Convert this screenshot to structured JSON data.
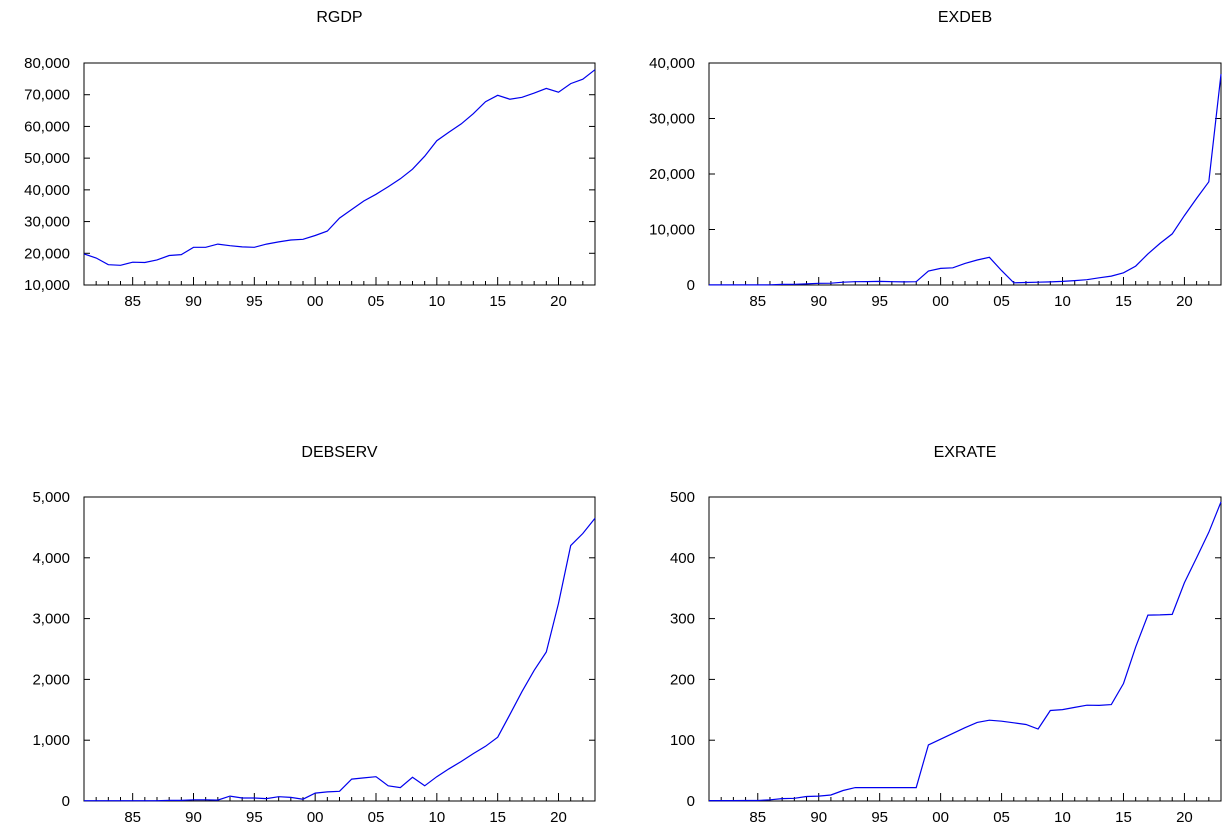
{
  "chart_data": [
    {
      "type": "line",
      "title": "RGDP",
      "x": [
        1981,
        1982,
        1983,
        1984,
        1985,
        1986,
        1987,
        1988,
        1989,
        1990,
        1991,
        1992,
        1993,
        1994,
        1995,
        1996,
        1997,
        1998,
        1999,
        2000,
        2001,
        2002,
        2003,
        2004,
        2005,
        2006,
        2007,
        2008,
        2009,
        2010,
        2011,
        2012,
        2013,
        2014,
        2015,
        2016,
        2017,
        2018,
        2019,
        2020,
        2021,
        2022,
        2023
      ],
      "series": [
        {
          "values": [
            19800,
            18500,
            16400,
            16200,
            17200,
            17100,
            17900,
            19300,
            19600,
            21900,
            21900,
            22900,
            22400,
            22000,
            21900,
            22900,
            23600,
            24200,
            24400,
            25600,
            27000,
            31100,
            33800,
            36500,
            38600,
            41000,
            43500,
            46500,
            50600,
            55500,
            58200,
            60800,
            64000,
            67800,
            69800,
            68600,
            69200,
            70500,
            72000,
            70800,
            73500,
            74900,
            77900
          ],
          "color": "#0000ee"
        }
      ],
      "xticks": [
        "85",
        "90",
        "95",
        "00",
        "05",
        "10",
        "15",
        "20"
      ],
      "yticks": [
        "10,000",
        "20,000",
        "30,000",
        "40,000",
        "50,000",
        "60,000",
        "70,000",
        "80,000"
      ],
      "ylim": [
        10000,
        80000
      ],
      "xlim": [
        1981,
        2023
      ]
    },
    {
      "type": "line",
      "title": "EXDEB",
      "x": [
        1981,
        1982,
        1983,
        1984,
        1985,
        1986,
        1987,
        1988,
        1989,
        1990,
        1991,
        1992,
        1993,
        1994,
        1995,
        1996,
        1997,
        1998,
        1999,
        2000,
        2001,
        2002,
        2003,
        2004,
        2005,
        2006,
        2007,
        2008,
        2009,
        2010,
        2011,
        2012,
        2013,
        2014,
        2015,
        2016,
        2017,
        2018,
        2019,
        2020,
        2021,
        2022,
        2023
      ],
      "series": [
        {
          "values": [
            10,
            10,
            10,
            10,
            20,
            40,
            100,
            120,
            200,
            300,
            330,
            500,
            600,
            620,
            650,
            600,
            550,
            600,
            2500,
            3000,
            3100,
            3900,
            4500,
            5000,
            2600,
            400,
            450,
            500,
            550,
            650,
            800,
            950,
            1300,
            1600,
            2200,
            3400,
            5600,
            7500,
            9200,
            12500,
            15600,
            18600,
            38000
          ],
          "color": "#0000ee"
        }
      ],
      "xticks": [
        "85",
        "90",
        "95",
        "00",
        "05",
        "10",
        "15",
        "20"
      ],
      "yticks": [
        "0",
        "10,000",
        "20,000",
        "30,000",
        "40,000"
      ],
      "ylim": [
        0,
        40000
      ],
      "xlim": [
        1981,
        2023
      ]
    },
    {
      "type": "line",
      "title": "DEBSERV",
      "x": [
        1981,
        1982,
        1983,
        1984,
        1985,
        1986,
        1987,
        1988,
        1989,
        1990,
        1991,
        1992,
        1993,
        1994,
        1995,
        1996,
        1997,
        1998,
        1999,
        2000,
        2001,
        2002,
        2003,
        2004,
        2005,
        2006,
        2007,
        2008,
        2009,
        2010,
        2011,
        2012,
        2013,
        2014,
        2015,
        2016,
        2017,
        2018,
        2019,
        2020,
        2021,
        2022,
        2023
      ],
      "series": [
        {
          "values": [
            5,
            5,
            5,
            5,
            5,
            5,
            5,
            10,
            10,
            20,
            20,
            15,
            80,
            50,
            50,
            40,
            70,
            60,
            30,
            130,
            150,
            160,
            360,
            380,
            400,
            250,
            220,
            390,
            250,
            400,
            530,
            650,
            780,
            900,
            1050,
            1420,
            1800,
            2150,
            2450,
            3250,
            4200,
            4400,
            4650
          ],
          "color": "#0000ee"
        }
      ],
      "xticks": [
        "85",
        "90",
        "95",
        "00",
        "05",
        "10",
        "15",
        "20"
      ],
      "yticks": [
        "0",
        "1,000",
        "2,000",
        "3,000",
        "4,000",
        "5,000"
      ],
      "ylim": [
        0,
        5000
      ],
      "xlim": [
        1981,
        2023
      ]
    },
    {
      "type": "line",
      "title": "EXRATE",
      "x": [
        1981,
        1982,
        1983,
        1984,
        1985,
        1986,
        1987,
        1988,
        1989,
        1990,
        1991,
        1992,
        1993,
        1994,
        1995,
        1996,
        1997,
        1998,
        1999,
        2000,
        2001,
        2002,
        2003,
        2004,
        2005,
        2006,
        2007,
        2008,
        2009,
        2010,
        2011,
        2012,
        2013,
        2014,
        2015,
        2016,
        2017,
        2018,
        2019,
        2020,
        2021,
        2022,
        2023
      ],
      "series": [
        {
          "values": [
            0.6,
            0.7,
            0.7,
            0.8,
            0.9,
            2,
            4,
            4.5,
            7.4,
            8.0,
            9.9,
            17.3,
            22.1,
            22,
            22,
            22,
            22,
            22,
            92.3,
            101.7,
            111.2,
            120.6,
            129.2,
            132.9,
            131.3,
            128.7,
            125.8,
            118.5,
            148.9,
            150.3,
            153.9,
            157.5,
            157.3,
            158.6,
            193.3,
            253.5,
            305.8,
            306.1,
            306.9,
            358.8,
            400.2,
            441.9,
            492
          ]
        }
      ],
      "xticks": [
        "85",
        "90",
        "95",
        "00",
        "05",
        "10",
        "15",
        "20"
      ],
      "yticks": [
        "0",
        "100",
        "200",
        "300",
        "400",
        "500"
      ],
      "ylim": [
        0,
        500
      ],
      "xlim": [
        1981,
        2023
      ]
    }
  ]
}
